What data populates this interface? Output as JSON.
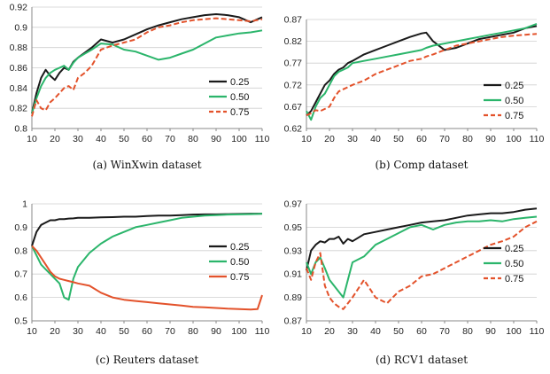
{
  "chart_data": [
    {
      "type": "line",
      "caption": "(a) WinXwin dataset",
      "x": [
        10,
        12,
        14,
        16,
        18,
        20,
        22,
        24,
        26,
        28,
        30,
        33,
        36,
        40,
        45,
        50,
        55,
        60,
        65,
        70,
        75,
        80,
        85,
        90,
        95,
        100,
        105,
        110
      ],
      "xticks": [
        10,
        20,
        30,
        40,
        50,
        60,
        70,
        80,
        90,
        100,
        110
      ],
      "yticks": [
        "0.8",
        "0.82",
        "0.84",
        "0.86",
        "0.88",
        "0.9",
        "0.92"
      ],
      "ylim": [
        0.8,
        0.92
      ],
      "grid": true,
      "legend_position": "right",
      "series": [
        {
          "name": "0.25",
          "color": "#1a1a1a",
          "dash": "solid",
          "values": [
            0.815,
            0.835,
            0.85,
            0.858,
            0.852,
            0.848,
            0.855,
            0.86,
            0.858,
            0.866,
            0.87,
            0.875,
            0.88,
            0.888,
            0.885,
            0.888,
            0.893,
            0.898,
            0.902,
            0.905,
            0.908,
            0.91,
            0.912,
            0.913,
            0.912,
            0.91,
            0.905,
            0.91
          ]
        },
        {
          "name": "0.50",
          "color": "#2bb56b",
          "dash": "solid",
          "values": [
            0.815,
            0.83,
            0.842,
            0.85,
            0.855,
            0.858,
            0.86,
            0.862,
            0.858,
            0.865,
            0.87,
            0.874,
            0.878,
            0.884,
            0.883,
            0.878,
            0.876,
            0.872,
            0.868,
            0.87,
            0.874,
            0.878,
            0.884,
            0.89,
            0.892,
            0.894,
            0.895,
            0.897
          ]
        },
        {
          "name": "0.75",
          "color": "#e3522b",
          "dash": "dashed",
          "values": [
            0.812,
            0.828,
            0.82,
            0.818,
            0.826,
            0.83,
            0.835,
            0.84,
            0.842,
            0.838,
            0.85,
            0.855,
            0.862,
            0.878,
            0.882,
            0.885,
            0.888,
            0.895,
            0.9,
            0.902,
            0.905,
            0.907,
            0.908,
            0.909,
            0.908,
            0.907,
            0.906,
            0.908
          ]
        }
      ]
    },
    {
      "type": "line",
      "caption": "(b) Comp dataset",
      "x": [
        10,
        12,
        14,
        16,
        18,
        20,
        22,
        24,
        26,
        28,
        30,
        35,
        40,
        45,
        50,
        55,
        60,
        62,
        65,
        70,
        75,
        80,
        85,
        90,
        95,
        100,
        105,
        110
      ],
      "xticks": [
        10,
        20,
        30,
        40,
        50,
        60,
        70,
        80,
        90,
        100,
        110
      ],
      "yticks": [
        "0.62",
        "0.67",
        "0.72",
        "0.77",
        "0.82",
        "0.87"
      ],
      "ylim": [
        0.62,
        0.87
      ],
      "grid": true,
      "legend_position": "right",
      "series": [
        {
          "name": "0.25",
          "color": "#1a1a1a",
          "dash": "solid",
          "values": [
            0.65,
            0.66,
            0.68,
            0.7,
            0.72,
            0.73,
            0.745,
            0.755,
            0.76,
            0.77,
            0.775,
            0.79,
            0.8,
            0.81,
            0.82,
            0.83,
            0.838,
            0.84,
            0.82,
            0.8,
            0.805,
            0.815,
            0.825,
            0.83,
            0.835,
            0.84,
            0.85,
            0.855
          ]
        },
        {
          "name": "0.50",
          "color": "#2bb56b",
          "dash": "solid",
          "values": [
            0.66,
            0.64,
            0.67,
            0.69,
            0.7,
            0.72,
            0.74,
            0.75,
            0.755,
            0.76,
            0.77,
            0.775,
            0.78,
            0.785,
            0.79,
            0.795,
            0.8,
            0.805,
            0.81,
            0.815,
            0.82,
            0.825,
            0.83,
            0.835,
            0.84,
            0.845,
            0.85,
            0.86
          ]
        },
        {
          "name": "0.75",
          "color": "#e3522b",
          "dash": "dashed",
          "values": [
            0.65,
            0.655,
            0.662,
            0.66,
            0.665,
            0.67,
            0.69,
            0.705,
            0.71,
            0.715,
            0.72,
            0.73,
            0.745,
            0.755,
            0.765,
            0.775,
            0.78,
            0.785,
            0.79,
            0.8,
            0.81,
            0.815,
            0.82,
            0.825,
            0.83,
            0.833,
            0.835,
            0.837
          ]
        }
      ]
    },
    {
      "type": "line",
      "caption": "(c) Reuters dataset",
      "x": [
        10,
        12,
        14,
        16,
        18,
        20,
        22,
        24,
        26,
        28,
        30,
        35,
        40,
        45,
        50,
        55,
        60,
        65,
        70,
        75,
        80,
        85,
        90,
        95,
        100,
        105,
        108,
        110
      ],
      "xticks": [
        10,
        20,
        30,
        40,
        50,
        60,
        70,
        80,
        90,
        100,
        110
      ],
      "yticks": [
        "0.5",
        "0.6",
        "0.7",
        "0.8",
        "0.9",
        "1"
      ],
      "ylim": [
        0.5,
        1.0
      ],
      "grid": true,
      "legend_position": "right",
      "series": [
        {
          "name": "0.25",
          "color": "#1a1a1a",
          "dash": "solid",
          "values": [
            0.82,
            0.88,
            0.91,
            0.92,
            0.93,
            0.93,
            0.935,
            0.935,
            0.937,
            0.938,
            0.94,
            0.94,
            0.942,
            0.943,
            0.945,
            0.945,
            0.948,
            0.95,
            0.95,
            0.952,
            0.954,
            0.955,
            0.955,
            0.956,
            0.957,
            0.958,
            0.958,
            0.958
          ]
        },
        {
          "name": "0.50",
          "color": "#2bb56b",
          "dash": "solid",
          "values": [
            0.82,
            0.78,
            0.74,
            0.72,
            0.7,
            0.68,
            0.66,
            0.6,
            0.59,
            0.68,
            0.73,
            0.79,
            0.83,
            0.86,
            0.88,
            0.9,
            0.91,
            0.92,
            0.93,
            0.94,
            0.945,
            0.95,
            0.952,
            0.954,
            0.955,
            0.956,
            0.957,
            0.958
          ]
        },
        {
          "name": "0.75",
          "color": "#e3522b",
          "dash": "solid",
          "values": [
            0.82,
            0.8,
            0.77,
            0.74,
            0.71,
            0.69,
            0.68,
            0.675,
            0.67,
            0.665,
            0.66,
            0.65,
            0.62,
            0.6,
            0.59,
            0.585,
            0.58,
            0.575,
            0.57,
            0.565,
            0.56,
            0.558,
            0.555,
            0.552,
            0.55,
            0.548,
            0.55,
            0.61
          ]
        }
      ]
    },
    {
      "type": "line",
      "caption": "(d) RCV1 dataset",
      "x": [
        10,
        12,
        14,
        16,
        18,
        20,
        22,
        24,
        26,
        28,
        30,
        35,
        40,
        45,
        50,
        55,
        60,
        65,
        70,
        75,
        80,
        85,
        90,
        95,
        100,
        105,
        110
      ],
      "xticks": [
        10,
        20,
        30,
        40,
        50,
        60,
        70,
        80,
        90,
        100,
        110
      ],
      "yticks": [
        "0.87",
        "0.89",
        "0.91",
        "0.93",
        "0.95",
        "0.97"
      ],
      "ylim": [
        0.87,
        0.97
      ],
      "grid": true,
      "legend_position": "right",
      "series": [
        {
          "name": "0.25",
          "color": "#1a1a1a",
          "dash": "solid",
          "values": [
            0.913,
            0.93,
            0.935,
            0.938,
            0.937,
            0.94,
            0.94,
            0.942,
            0.936,
            0.94,
            0.938,
            0.944,
            0.946,
            0.948,
            0.95,
            0.952,
            0.954,
            0.955,
            0.956,
            0.958,
            0.96,
            0.961,
            0.962,
            0.962,
            0.963,
            0.965,
            0.966
          ]
        },
        {
          "name": "0.50",
          "color": "#2bb56b",
          "dash": "solid",
          "values": [
            0.92,
            0.91,
            0.92,
            0.924,
            0.915,
            0.905,
            0.9,
            0.895,
            0.89,
            0.905,
            0.92,
            0.925,
            0.935,
            0.94,
            0.945,
            0.95,
            0.952,
            0.948,
            0.952,
            0.954,
            0.955,
            0.955,
            0.956,
            0.955,
            0.957,
            0.958,
            0.959
          ]
        },
        {
          "name": "0.75",
          "color": "#e3522b",
          "dash": "dashed",
          "values": [
            0.915,
            0.905,
            0.92,
            0.928,
            0.9,
            0.89,
            0.885,
            0.882,
            0.88,
            0.885,
            0.89,
            0.905,
            0.89,
            0.885,
            0.895,
            0.9,
            0.908,
            0.91,
            0.915,
            0.92,
            0.925,
            0.93,
            0.935,
            0.938,
            0.942,
            0.95,
            0.955
          ]
        }
      ]
    }
  ]
}
